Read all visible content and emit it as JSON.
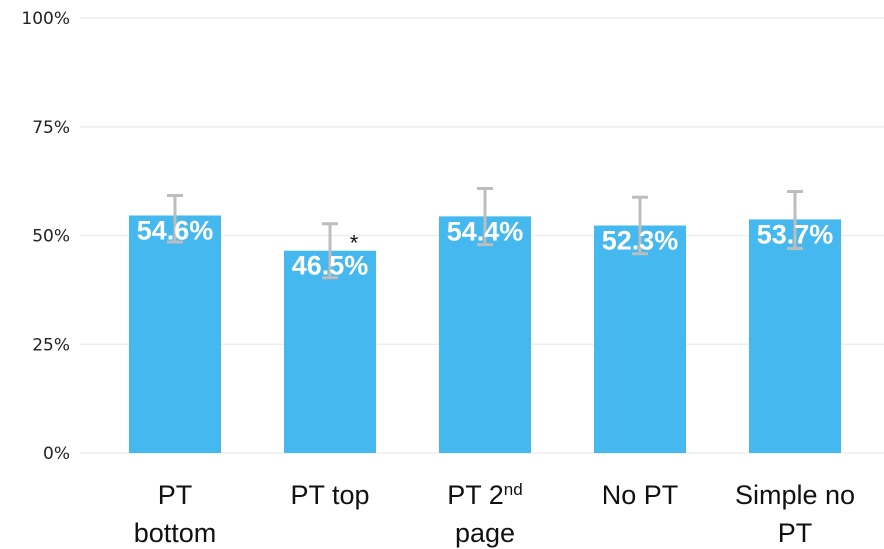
{
  "chart_data": {
    "type": "bar",
    "categories": [
      [
        "PT",
        "bottom"
      ],
      [
        "PT top"
      ],
      [
        "PT 2|nd",
        "page"
      ],
      [
        "No PT"
      ],
      [
        "Simple no",
        "PT"
      ]
    ],
    "values": [
      54.6,
      46.5,
      54.4,
      52.3,
      53.7
    ],
    "data_labels": [
      "54.6%",
      "46.5%",
      "54.4%",
      "52.3%",
      "53.7%"
    ],
    "error_bars": [
      [
        48.5,
        59.2
      ],
      [
        40.3,
        52.7
      ],
      [
        47.9,
        60.8
      ],
      [
        45.8,
        58.8
      ],
      [
        47.0,
        60.1
      ]
    ],
    "annotations": [
      "",
      "*",
      "",
      "",
      ""
    ],
    "ylim": [
      0,
      100
    ],
    "yticks": [
      0,
      25,
      50,
      75,
      100
    ],
    "ytick_labels": [
      "0%",
      "25%",
      "50%",
      "75%",
      "100%"
    ],
    "colors": {
      "bar": "#45b9ef",
      "error_bar": "#bdbdbd",
      "grid": "#eeeeee"
    },
    "grid": true,
    "title": "",
    "xlabel": "",
    "ylabel": ""
  }
}
